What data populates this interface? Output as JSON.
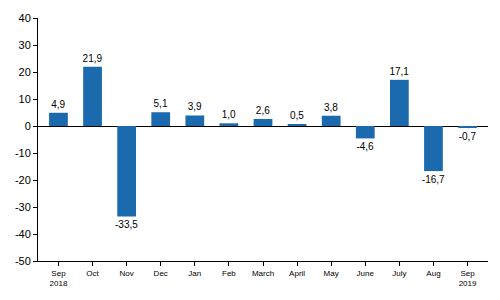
{
  "chart_data": {
    "type": "bar",
    "categories": [
      "Sep 2018",
      "Oct",
      "Nov",
      "Dec",
      "Jan",
      "Feb",
      "March",
      "April",
      "May",
      "June",
      "July",
      "Aug",
      "Sep 2019"
    ],
    "values": [
      4.9,
      21.9,
      -33.5,
      5.1,
      3.9,
      1.0,
      2.6,
      0.5,
      3.8,
      -4.6,
      17.1,
      -16.7,
      -0.7
    ],
    "value_labels": [
      "4,9",
      "21,9",
      "-33,5",
      "5,1",
      "3,9",
      "1,0",
      "2,6",
      "0,5",
      "3,8",
      "-4,6",
      "17,1",
      "-16,7",
      "-0,7"
    ],
    "color": "#1c6aae",
    "ylim": [
      -50,
      40
    ],
    "yticks": [
      -50,
      -40,
      -30,
      -20,
      -10,
      0,
      10,
      20,
      30,
      40
    ],
    "grid": false,
    "data_labels": true
  }
}
